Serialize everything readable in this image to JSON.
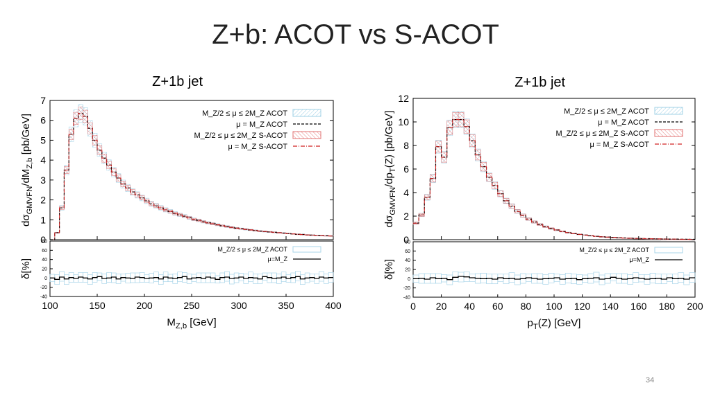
{
  "slide": {
    "title": "Z+b: ACOT vs S-ACOT",
    "page_number": "34"
  },
  "chart_data": [
    {
      "type": "line",
      "title": "Z+1b jet",
      "xlabel": "M_{Z,b} [GeV]",
      "xlabel_text": "M",
      "xlabel_sub": "Z,b",
      "xlabel_tail": " [GeV]",
      "ylabel": "dσ_GMVFN/dM_{Z,b} [pb/GeV]",
      "ylabel_parts": [
        "dσ",
        "GMVFN",
        "/dM",
        "Z,b",
        " [pb/GeV]"
      ],
      "xlim": [
        100,
        400
      ],
      "ylim": [
        0,
        7
      ],
      "xticks": [
        100,
        150,
        200,
        250,
        300,
        350,
        400
      ],
      "yticks": [
        0,
        1,
        2,
        3,
        4,
        5,
        6,
        7
      ],
      "bin_width": 5,
      "x": [
        100,
        105,
        110,
        115,
        120,
        125,
        130,
        135,
        140,
        145,
        150,
        155,
        160,
        165,
        170,
        175,
        180,
        185,
        190,
        195,
        200,
        205,
        210,
        215,
        220,
        225,
        230,
        235,
        240,
        245,
        250,
        255,
        260,
        265,
        270,
        275,
        280,
        285,
        290,
        295,
        300,
        305,
        310,
        315,
        320,
        325,
        330,
        335,
        340,
        345,
        350,
        355,
        360,
        365,
        370,
        375,
        380,
        385,
        390,
        395
      ],
      "series": [
        {
          "name": "M_Z/2 ≤ μ ≤ 2M_Z ACOT",
          "legend": "M_Z/2 ≤ μ ≤ 2M_Z  ACOT",
          "values": [
            0,
            0.35,
            1.6,
            3.5,
            5.3,
            6.1,
            6.35,
            6.2,
            5.6,
            5.0,
            4.5,
            4.1,
            3.75,
            3.4,
            3.1,
            2.8,
            2.6,
            2.4,
            2.25,
            2.1,
            1.95,
            1.8,
            1.7,
            1.6,
            1.5,
            1.42,
            1.32,
            1.25,
            1.18,
            1.1,
            1.02,
            0.97,
            0.9,
            0.85,
            0.8,
            0.75,
            0.7,
            0.66,
            0.62,
            0.58,
            0.55,
            0.52,
            0.49,
            0.46,
            0.43,
            0.41,
            0.39,
            0.37,
            0.35,
            0.33,
            0.31,
            0.29,
            0.27,
            0.26,
            0.24,
            0.23,
            0.22,
            0.21,
            0.2,
            0.19
          ],
          "band": 0.07
        },
        {
          "name": "μ = M_Z ACOT",
          "legend": "μ = M_Z  ACOT"
        },
        {
          "name": "M_Z/2 ≤ μ ≤ 2M_Z S-ACOT",
          "legend": "M_Z/2 ≤ μ ≤ 2M_Z  S-ACOT",
          "band": 0.05
        },
        {
          "name": "μ = M_Z S-ACOT",
          "legend": "μ = M_Z  S-ACOT"
        }
      ],
      "ratio": {
        "ylabel": "δ[%]",
        "ylim": [
          -40,
          80
        ],
        "yticks": [
          -40,
          -20,
          0,
          20,
          40,
          60,
          80
        ],
        "legend": [
          "M_Z/2 ≤ μ ≤ 2M_Z  ACOT",
          "μ=M_Z"
        ],
        "band_halfwidth": 8,
        "central": [
          0,
          -3,
          2,
          -2,
          1,
          -1,
          2,
          0,
          -2,
          1,
          3,
          -1,
          0,
          2,
          -2,
          1,
          0,
          -1,
          2,
          1,
          -1,
          0,
          1,
          -2,
          2,
          0,
          -1,
          1,
          3,
          -2,
          0,
          1,
          -1,
          2,
          0,
          -3,
          1,
          2,
          -1,
          0,
          2,
          -1,
          1,
          0,
          -2,
          3,
          1,
          -1,
          0,
          2,
          -1,
          1,
          3,
          -2,
          0,
          1,
          -1,
          2,
          0,
          1
        ]
      },
      "legend_position": "top-right"
    },
    {
      "type": "line",
      "title": "Z+1b jet",
      "xlabel": "p_T(Z) [GeV]",
      "xlabel_text": "p",
      "xlabel_sub": "T",
      "xlabel_tail": "(Z) [GeV]",
      "ylabel": "dσ_GMVFN/dp_T(Z) [pb/GeV]",
      "ylabel_parts": [
        "dσ",
        "GMVFN",
        "/dp",
        "T",
        "(Z) [pb/GeV]"
      ],
      "xlim": [
        0,
        200
      ],
      "ylim": [
        0,
        12
      ],
      "xticks": [
        0,
        20,
        40,
        60,
        80,
        100,
        120,
        140,
        160,
        180,
        200
      ],
      "yticks": [
        0,
        2,
        4,
        6,
        8,
        10,
        12
      ],
      "bin_width": 4,
      "x": [
        0,
        4,
        8,
        12,
        16,
        20,
        24,
        28,
        32,
        36,
        40,
        44,
        48,
        52,
        56,
        60,
        64,
        68,
        72,
        76,
        80,
        84,
        88,
        92,
        96,
        100,
        104,
        108,
        112,
        116,
        120,
        124,
        128,
        132,
        136,
        140,
        144,
        148,
        152,
        156,
        160,
        164,
        168,
        172,
        176,
        180,
        184,
        188,
        192,
        196
      ],
      "series": [
        {
          "name": "M_Z/2 ≤ μ ≤ 2M_Z ACOT",
          "legend": "M_Z/2 ≤ μ ≤ 2M_Z  ACOT",
          "values": [
            1.4,
            2.1,
            3.6,
            5.2,
            7.9,
            7.0,
            9.5,
            10.2,
            10.2,
            9.6,
            8.4,
            7.2,
            6.2,
            5.3,
            4.6,
            3.9,
            3.3,
            2.85,
            2.4,
            2.05,
            1.75,
            1.5,
            1.28,
            1.1,
            0.95,
            0.82,
            0.7,
            0.6,
            0.52,
            0.45,
            0.39,
            0.34,
            0.29,
            0.25,
            0.22,
            0.19,
            0.17,
            0.15,
            0.13,
            0.11,
            0.1,
            0.09,
            0.08,
            0.07,
            0.06,
            0.05,
            0.05,
            0.04,
            0.04,
            0.03
          ],
          "band": 0.07
        },
        {
          "name": "μ = M_Z ACOT",
          "legend": "μ = M_Z  ACOT"
        },
        {
          "name": "M_Z/2 ≤ μ ≤ 2M_Z S-ACOT",
          "legend": "M_Z/2 ≤ μ ≤ 2M_Z  S-ACOT",
          "band": 0.06
        },
        {
          "name": "μ = M_Z S-ACOT",
          "legend": "μ = M_Z  S-ACOT"
        }
      ],
      "ratio": {
        "ylabel": "δ[%]",
        "ylim": [
          -40,
          80
        ],
        "yticks": [
          -40,
          -20,
          0,
          20,
          40,
          60,
          80
        ],
        "legend": [
          "M_Z/2 ≤ μ ≤ 2M_Z  ACOT",
          "μ=M_Z"
        ],
        "band_halfwidth": 8,
        "central": [
          0,
          1,
          -1,
          2,
          0,
          1,
          -2,
          3,
          5,
          4,
          2,
          1,
          0,
          1,
          -1,
          2,
          0,
          1,
          -1,
          0,
          2,
          1,
          -1,
          0,
          1,
          2,
          -1,
          0,
          1,
          -2,
          0,
          1,
          2,
          -1,
          0,
          3,
          1,
          -1,
          0,
          2,
          1,
          -1,
          0,
          1,
          -1,
          2,
          0,
          1,
          -1,
          2
        ]
      },
      "legend_position": "top-right"
    }
  ]
}
